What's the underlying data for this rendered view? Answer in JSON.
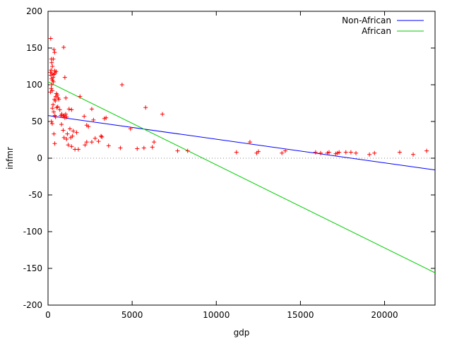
{
  "chart_data": {
    "type": "scatter",
    "title": "",
    "xlabel": "gdp",
    "ylabel": "infmr",
    "xlim": [
      0,
      23000
    ],
    "ylim": [
      -200,
      200
    ],
    "x_ticks": [
      0,
      5000,
      10000,
      15000,
      20000
    ],
    "y_ticks": [
      -200,
      -150,
      -100,
      -50,
      0,
      50,
      100,
      150,
      200
    ],
    "zero_line": "dotted",
    "legend_position": "top-right",
    "colors": {
      "points": "#ff0000",
      "non_african": "#0000ff",
      "african": "#00cc00"
    },
    "lines": [
      {
        "name": "Non-African",
        "color": "#0000ff",
        "x": [
          0,
          23000
        ],
        "y": [
          58,
          -16
        ]
      },
      {
        "name": "African",
        "color": "#00cc00",
        "x": [
          0,
          23000
        ],
        "y": [
          104,
          -156
        ]
      }
    ],
    "points": [
      [
        160,
        163
      ],
      [
        200,
        135
      ],
      [
        220,
        130
      ],
      [
        260,
        125
      ],
      [
        180,
        120
      ],
      [
        150,
        117
      ],
      [
        240,
        115
      ],
      [
        170,
        113
      ],
      [
        300,
        110
      ],
      [
        220,
        108
      ],
      [
        270,
        106
      ],
      [
        320,
        104
      ],
      [
        210,
        100
      ],
      [
        190,
        95
      ],
      [
        250,
        92
      ],
      [
        150,
        90
      ],
      [
        350,
        148
      ],
      [
        390,
        144
      ],
      [
        310,
        135
      ],
      [
        400,
        119
      ],
      [
        480,
        118
      ],
      [
        420,
        116
      ],
      [
        360,
        114
      ],
      [
        500,
        88
      ],
      [
        460,
        84
      ],
      [
        380,
        80
      ],
      [
        430,
        78
      ],
      [
        550,
        86
      ],
      [
        600,
        82
      ],
      [
        640,
        80
      ],
      [
        300,
        73
      ],
      [
        260,
        68
      ],
      [
        340,
        63
      ],
      [
        410,
        58
      ],
      [
        450,
        56
      ],
      [
        520,
        69
      ],
      [
        580,
        70
      ],
      [
        700,
        66
      ],
      [
        760,
        58
      ],
      [
        820,
        60
      ],
      [
        900,
        57
      ],
      [
        960,
        58
      ],
      [
        1000,
        55
      ],
      [
        1100,
        56
      ],
      [
        1050,
        60
      ],
      [
        930,
        151
      ],
      [
        1000,
        110
      ],
      [
        1060,
        82
      ],
      [
        200,
        50
      ],
      [
        250,
        47
      ],
      [
        350,
        33
      ],
      [
        400,
        20
      ],
      [
        800,
        46
      ],
      [
        900,
        38
      ],
      [
        1150,
        33
      ],
      [
        1100,
        26
      ],
      [
        950,
        28
      ],
      [
        1300,
        40
      ],
      [
        1350,
        28
      ],
      [
        1450,
        30
      ],
      [
        1500,
        37
      ],
      [
        1700,
        35
      ],
      [
        1200,
        18
      ],
      [
        1400,
        16
      ],
      [
        1600,
        12
      ],
      [
        1800,
        12
      ],
      [
        1250,
        67
      ],
      [
        1400,
        66
      ],
      [
        1900,
        84
      ],
      [
        2150,
        57
      ],
      [
        2300,
        45
      ],
      [
        2400,
        43
      ],
      [
        2600,
        67
      ],
      [
        2700,
        52
      ],
      [
        2800,
        27
      ],
      [
        2600,
        22
      ],
      [
        2300,
        22
      ],
      [
        2200,
        18
      ],
      [
        3000,
        23
      ],
      [
        3150,
        30
      ],
      [
        3200,
        29
      ],
      [
        3350,
        54
      ],
      [
        3450,
        55
      ],
      [
        3600,
        17
      ],
      [
        4300,
        14
      ],
      [
        4400,
        100
      ],
      [
        4900,
        40
      ],
      [
        5300,
        13
      ],
      [
        5700,
        14
      ],
      [
        5800,
        69
      ],
      [
        6200,
        15
      ],
      [
        6300,
        22
      ],
      [
        6800,
        60
      ],
      [
        7700,
        10
      ],
      [
        8300,
        10
      ],
      [
        11200,
        8
      ],
      [
        12000,
        22
      ],
      [
        12400,
        7
      ],
      [
        12500,
        9
      ],
      [
        13900,
        7
      ],
      [
        14100,
        10
      ],
      [
        15900,
        8
      ],
      [
        16200,
        7
      ],
      [
        16600,
        7
      ],
      [
        16700,
        8
      ],
      [
        17100,
        6
      ],
      [
        17200,
        7
      ],
      [
        17300,
        8
      ],
      [
        17700,
        8
      ],
      [
        18000,
        8
      ],
      [
        18300,
        7
      ],
      [
        19100,
        5
      ],
      [
        19400,
        7
      ],
      [
        20900,
        8
      ],
      [
        21700,
        5
      ],
      [
        22500,
        10
      ]
    ]
  }
}
